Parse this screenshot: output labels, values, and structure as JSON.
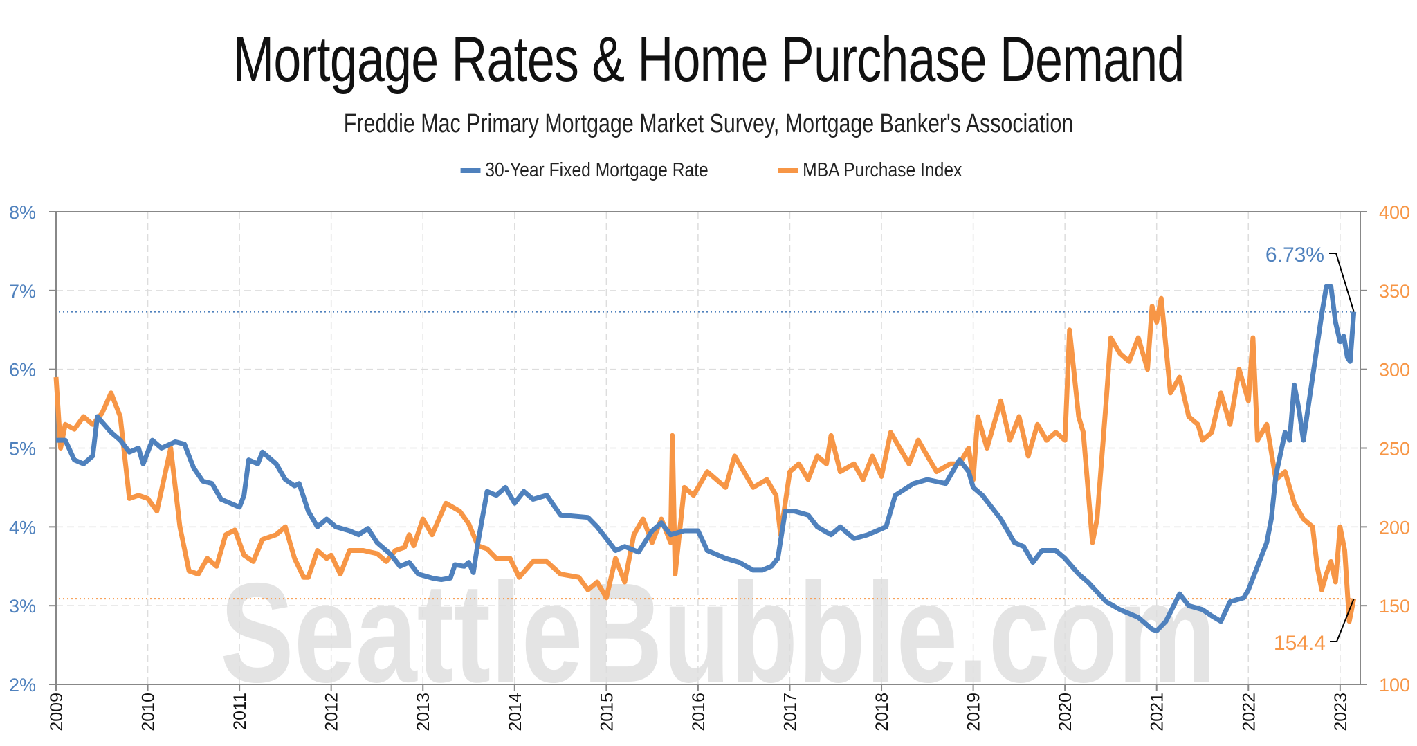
{
  "chart_data": {
    "type": "line",
    "title": "Mortgage Rates & Home Purchase Demand",
    "subtitle": "Freddie Mac Primary Mortgage Market Survey, Mortgage Banker's Association",
    "watermark": "SeattleBubble.com",
    "legend_placement": "top-center",
    "grid": true,
    "x_ticks": [
      "2009",
      "2010",
      "2011",
      "2012",
      "2013",
      "2014",
      "2015",
      "2016",
      "2017",
      "2018",
      "2019",
      "2020",
      "2021",
      "2022",
      "2023"
    ],
    "xlim": [
      2009,
      2023.22
    ],
    "y_left": {
      "ticks": [
        "2%",
        "3%",
        "4%",
        "5%",
        "6%",
        "7%",
        "8%"
      ],
      "lim": [
        2,
        8
      ],
      "color": "#4f81bd"
    },
    "y_right": {
      "ticks": [
        "100",
        "150",
        "200",
        "250",
        "300",
        "350",
        "400"
      ],
      "lim": [
        100,
        400
      ],
      "color": "#f79646"
    },
    "series": [
      {
        "name": "30-Year Fixed Mortgage Rate",
        "axis": "left",
        "color": "#4f81bd",
        "last_label": "6.73%",
        "last_value": 6.73,
        "x": [
          2009.0,
          2009.1,
          2009.2,
          2009.3,
          2009.4,
          2009.45,
          2009.6,
          2009.7,
          2009.8,
          2009.9,
          2009.95,
          2010.05,
          2010.15,
          2010.3,
          2010.4,
          2010.5,
          2010.6,
          2010.7,
          2010.8,
          2010.9,
          2011.0,
          2011.05,
          2011.1,
          2011.2,
          2011.25,
          2011.4,
          2011.5,
          2011.6,
          2011.65,
          2011.75,
          2011.85,
          2011.95,
          2012.05,
          2012.2,
          2012.3,
          2012.4,
          2012.5,
          2012.65,
          2012.75,
          2012.85,
          2012.95,
          2013.1,
          2013.2,
          2013.3,
          2013.35,
          2013.45,
          2013.5,
          2013.55,
          2013.6,
          2013.7,
          2013.8,
          2013.9,
          2014.0,
          2014.1,
          2014.2,
          2014.35,
          2014.5,
          2014.6,
          2014.8,
          2014.9,
          2015.0,
          2015.1,
          2015.2,
          2015.35,
          2015.5,
          2015.6,
          2015.7,
          2015.85,
          2016.0,
          2016.1,
          2016.3,
          2016.45,
          2016.6,
          2016.7,
          2016.8,
          2016.87,
          2016.95,
          2017.05,
          2017.2,
          2017.3,
          2017.45,
          2017.55,
          2017.7,
          2017.85,
          2017.95,
          2018.05,
          2018.15,
          2018.35,
          2018.5,
          2018.7,
          2018.85,
          2018.95,
          2019.0,
          2019.1,
          2019.3,
          2019.45,
          2019.55,
          2019.65,
          2019.75,
          2019.9,
          2020.0,
          2020.15,
          2020.25,
          2020.45,
          2020.6,
          2020.8,
          2020.95,
          2021.0,
          2021.1,
          2021.25,
          2021.35,
          2021.5,
          2021.6,
          2021.7,
          2021.8,
          2021.95,
          2022.0,
          2022.1,
          2022.2,
          2022.25,
          2022.3,
          2022.4,
          2022.45,
          2022.5,
          2022.55,
          2022.6,
          2022.7,
          2022.75,
          2022.8,
          2022.85,
          2022.9,
          2022.95,
          2023.0,
          2023.04,
          2023.08,
          2023.11,
          2023.15
        ],
        "y": [
          5.1,
          5.1,
          4.85,
          4.8,
          4.9,
          5.4,
          5.2,
          5.1,
          4.95,
          5.0,
          4.8,
          5.1,
          5.0,
          5.08,
          5.05,
          4.75,
          4.58,
          4.55,
          4.35,
          4.3,
          4.25,
          4.4,
          4.85,
          4.8,
          4.95,
          4.8,
          4.6,
          4.52,
          4.55,
          4.2,
          4.0,
          4.1,
          4.0,
          3.95,
          3.9,
          3.98,
          3.8,
          3.65,
          3.5,
          3.55,
          3.4,
          3.35,
          3.33,
          3.35,
          3.52,
          3.5,
          3.55,
          3.42,
          3.8,
          4.45,
          4.4,
          4.5,
          4.3,
          4.45,
          4.35,
          4.4,
          4.15,
          4.14,
          4.12,
          4.0,
          3.85,
          3.7,
          3.75,
          3.68,
          3.95,
          4.05,
          3.9,
          3.95,
          3.95,
          3.7,
          3.6,
          3.55,
          3.45,
          3.45,
          3.5,
          3.6,
          4.2,
          4.2,
          4.15,
          4.0,
          3.9,
          4.0,
          3.85,
          3.9,
          3.95,
          4.0,
          4.4,
          4.55,
          4.6,
          4.55,
          4.85,
          4.7,
          4.5,
          4.4,
          4.1,
          3.8,
          3.75,
          3.55,
          3.7,
          3.7,
          3.6,
          3.4,
          3.3,
          3.05,
          2.95,
          2.85,
          2.7,
          2.68,
          2.8,
          3.15,
          3.0,
          2.95,
          2.87,
          2.8,
          3.05,
          3.1,
          3.2,
          3.5,
          3.8,
          4.1,
          4.65,
          5.2,
          5.1,
          5.8,
          5.5,
          5.1,
          5.9,
          6.3,
          6.7,
          7.05,
          7.05,
          6.6,
          6.35,
          6.42,
          6.15,
          6.1,
          6.73
        ]
      },
      {
        "name": "MBA Purchase Index",
        "axis": "right",
        "color": "#f79646",
        "last_label": "154.4",
        "last_value": 154.4,
        "x": [
          2009.0,
          2009.05,
          2009.1,
          2009.2,
          2009.3,
          2009.4,
          2009.5,
          2009.6,
          2009.7,
          2009.8,
          2009.9,
          2010.0,
          2010.1,
          2010.25,
          2010.35,
          2010.45,
          2010.55,
          2010.65,
          2010.75,
          2010.85,
          2010.95,
          2011.05,
          2011.15,
          2011.25,
          2011.4,
          2011.5,
          2011.6,
          2011.7,
          2011.75,
          2011.85,
          2011.95,
          2012.0,
          2012.1,
          2012.2,
          2012.35,
          2012.5,
          2012.6,
          2012.7,
          2012.8,
          2012.85,
          2012.9,
          2013.0,
          2013.1,
          2013.25,
          2013.4,
          2013.5,
          2013.6,
          2013.7,
          2013.8,
          2013.95,
          2014.05,
          2014.2,
          2014.35,
          2014.5,
          2014.7,
          2014.8,
          2014.9,
          2015.0,
          2015.1,
          2015.2,
          2015.3,
          2015.4,
          2015.5,
          2015.6,
          2015.7,
          2015.72,
          2015.75,
          2015.85,
          2015.95,
          2016.1,
          2016.3,
          2016.4,
          2016.5,
          2016.6,
          2016.75,
          2016.85,
          2016.9,
          2017.0,
          2017.1,
          2017.2,
          2017.3,
          2017.4,
          2017.45,
          2017.55,
          2017.7,
          2017.8,
          2017.9,
          2018.0,
          2018.1,
          2018.2,
          2018.3,
          2018.4,
          2018.5,
          2018.6,
          2018.75,
          2018.85,
          2018.95,
          2019.0,
          2019.05,
          2019.15,
          2019.25,
          2019.3,
          2019.4,
          2019.5,
          2019.6,
          2019.7,
          2019.8,
          2019.9,
          2020.0,
          2020.05,
          2020.15,
          2020.2,
          2020.3,
          2020.35,
          2020.45,
          2020.5,
          2020.6,
          2020.7,
          2020.8,
          2020.9,
          2020.95,
          2021.0,
          2021.05,
          2021.15,
          2021.25,
          2021.35,
          2021.45,
          2021.5,
          2021.6,
          2021.7,
          2021.8,
          2021.9,
          2022.0,
          2022.05,
          2022.1,
          2022.2,
          2022.3,
          2022.4,
          2022.5,
          2022.6,
          2022.7,
          2022.75,
          2022.8,
          2022.85,
          2022.9,
          2022.95,
          2023.0,
          2023.05,
          2023.1,
          2023.15
        ],
        "y": [
          295,
          250,
          265,
          262,
          270,
          265,
          272,
          285,
          270,
          218,
          220,
          218,
          210,
          250,
          200,
          172,
          170,
          180,
          175,
          195,
          198,
          182,
          178,
          192,
          195,
          200,
          180,
          168,
          168,
          185,
          180,
          182,
          170,
          185,
          185,
          183,
          178,
          185,
          187,
          195,
          188,
          205,
          195,
          215,
          210,
          202,
          188,
          186,
          180,
          180,
          168,
          178,
          178,
          170,
          168,
          160,
          165,
          155,
          180,
          165,
          195,
          205,
          190,
          205,
          190,
          258,
          170,
          225,
          220,
          235,
          225,
          245,
          235,
          225,
          230,
          220,
          195,
          235,
          240,
          230,
          245,
          240,
          258,
          235,
          240,
          230,
          245,
          232,
          260,
          250,
          240,
          255,
          245,
          235,
          240,
          240,
          250,
          230,
          270,
          250,
          270,
          280,
          255,
          270,
          245,
          265,
          255,
          260,
          255,
          325,
          270,
          260,
          190,
          205,
          280,
          320,
          310,
          305,
          320,
          300,
          340,
          330,
          345,
          285,
          295,
          270,
          265,
          255,
          260,
          285,
          265,
          300,
          280,
          320,
          255,
          265,
          230,
          235,
          215,
          205,
          200,
          175,
          160,
          170,
          178,
          165,
          200,
          185,
          140,
          154.4
        ]
      }
    ]
  }
}
